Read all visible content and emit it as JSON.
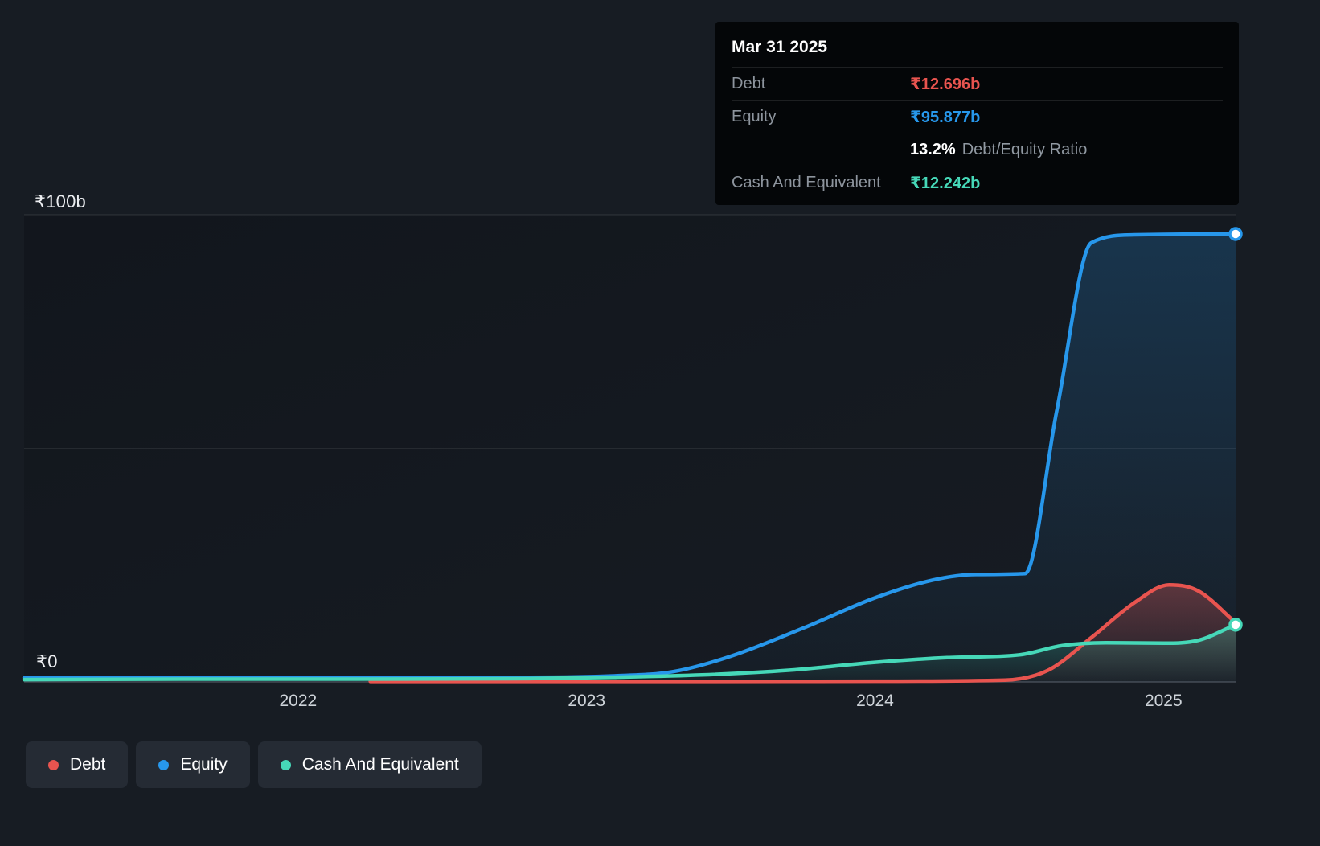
{
  "tooltip": {
    "title": "Mar 31 2025",
    "debt_label": "Debt",
    "debt_value": "₹12.696b",
    "equity_label": "Equity",
    "equity_value": "₹95.877b",
    "ratio_value": "13.2%",
    "ratio_label": "Debt/Equity Ratio",
    "cash_label": "Cash And Equivalent",
    "cash_value": "₹12.242b"
  },
  "legend": [
    {
      "label": "Debt",
      "color": "#e8544f"
    },
    {
      "label": "Equity",
      "color": "#2797eb"
    },
    {
      "label": "Cash And Equivalent",
      "color": "#46d8b8"
    }
  ],
  "chart_data": {
    "type": "area",
    "x_unit": "decimal_year",
    "x_range": [
      2021.05,
      2025.25
    ],
    "x_ticks": [
      2022,
      2023,
      2024,
      2025
    ],
    "y_range": [
      0,
      100
    ],
    "y_axis": {
      "top_label": "₹100b",
      "zero_label": "₹0",
      "currency": "₹",
      "unit": "billions"
    },
    "grid_values": [
      100,
      50,
      0
    ],
    "legend_position": "bottom-left",
    "series": [
      {
        "name": "Debt",
        "color": "#e8544f",
        "end_marker": false,
        "x": [
          2022.25,
          2022.8,
          2023.4,
          2024.0,
          2024.45,
          2024.6,
          2024.75,
          2024.9,
          2025.02,
          2025.12,
          2025.25
        ],
        "values": [
          0.1,
          0.1,
          0.1,
          0.15,
          0.4,
          2.5,
          9.5,
          17.0,
          20.8,
          19.5,
          12.696
        ]
      },
      {
        "name": "Equity",
        "color": "#2797eb",
        "end_marker": true,
        "x": [
          2021.05,
          2021.6,
          2022.2,
          2022.8,
          2023.1,
          2023.3,
          2023.5,
          2023.75,
          2024.0,
          2024.2,
          2024.35,
          2024.52,
          2024.63,
          2024.75,
          2024.9,
          2025.1,
          2025.25
        ],
        "values": [
          0.9,
          0.9,
          1.0,
          1.0,
          1.3,
          2.2,
          5.5,
          11.5,
          18.0,
          21.8,
          23.0,
          23.2,
          58.0,
          94.0,
          95.7,
          95.85,
          95.877
        ]
      },
      {
        "name": "Cash And Equivalent",
        "color": "#46d8b8",
        "end_marker": true,
        "x": [
          2021.05,
          2021.6,
          2022.2,
          2022.8,
          2023.1,
          2023.4,
          2023.7,
          2024.0,
          2024.25,
          2024.5,
          2024.65,
          2024.8,
          2025.0,
          2025.12,
          2025.25
        ],
        "values": [
          0.5,
          0.6,
          0.6,
          0.7,
          1.0,
          1.5,
          2.5,
          4.2,
          5.2,
          5.8,
          7.8,
          8.4,
          8.3,
          8.9,
          12.242
        ]
      }
    ],
    "latest": {
      "date": "Mar 31 2025",
      "debt_b": 12.696,
      "equity_b": 95.877,
      "debt_equity_ratio_pct": 13.2,
      "cash_b": 12.242
    }
  }
}
